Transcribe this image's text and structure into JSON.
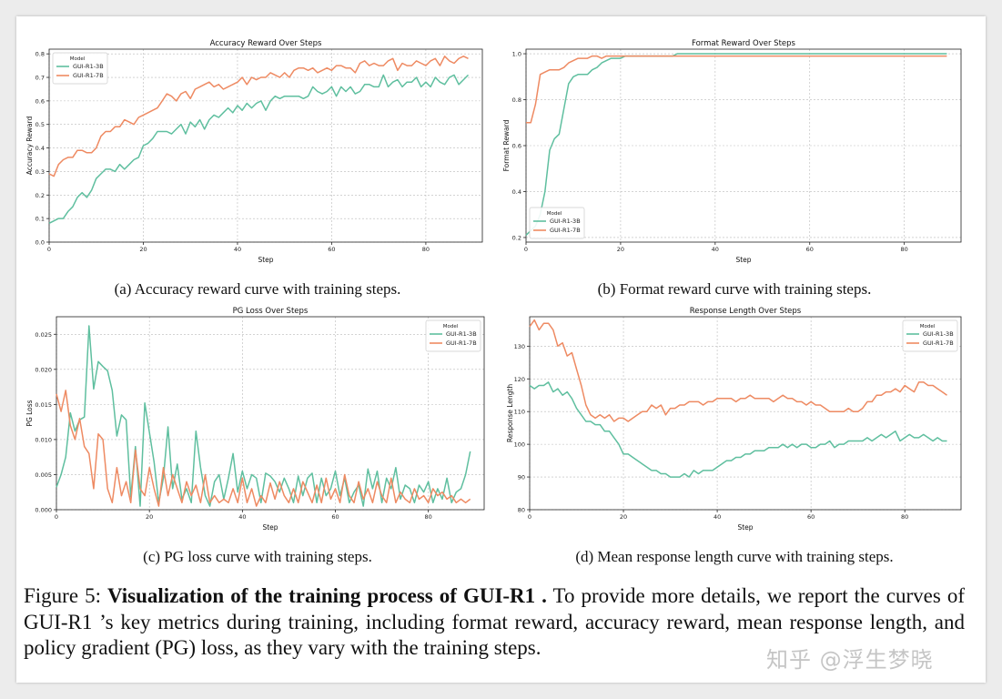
{
  "colors": {
    "3b": "#5fbf9f",
    "7b": "#ee8a62",
    "grid": "#b9b9b9"
  },
  "subcaptions": {
    "a": "(a) Accuracy reward curve with training steps.",
    "b": "(b) Format reward curve with training steps.",
    "c": "(c) PG loss curve with training steps.",
    "d": "(d) Mean response length curve with training steps."
  },
  "caption": {
    "label": "Figure 5: ",
    "bold": "Visualization of the training process of GUI-R1 .",
    "rest": " To provide more details, we report the curves of GUI-R1 ’s key metrics during training, including format reward, accuracy reward, mean response length, and policy gradient (PG) loss, as they vary with the training steps."
  },
  "watermark": "知乎 @浮生梦晓",
  "chart_data": [
    {
      "id": "acc",
      "type": "line",
      "title": "Accuracy Reward Over Steps",
      "xlabel": "Step",
      "ylabel": "Accuracy Reward",
      "xlim": [
        0,
        92
      ],
      "ylim": [
        0.0,
        0.82
      ],
      "xticks": [
        0,
        20,
        40,
        60,
        80
      ],
      "yticks": [
        0.0,
        0.1,
        0.2,
        0.3,
        0.4,
        0.5,
        0.6,
        0.7,
        0.8
      ],
      "ydec": 1,
      "legend_title": "Model",
      "legend_loc": "upper-left",
      "series": [
        {
          "name": "GUI-R1-3B",
          "color": "#5fbf9f",
          "values": [
            0.08,
            0.09,
            0.1,
            0.1,
            0.13,
            0.15,
            0.19,
            0.21,
            0.19,
            0.22,
            0.27,
            0.29,
            0.31,
            0.31,
            0.3,
            0.33,
            0.31,
            0.33,
            0.35,
            0.36,
            0.41,
            0.42,
            0.44,
            0.47,
            0.47,
            0.47,
            0.46,
            0.48,
            0.5,
            0.46,
            0.51,
            0.49,
            0.52,
            0.48,
            0.52,
            0.54,
            0.53,
            0.55,
            0.57,
            0.55,
            0.58,
            0.56,
            0.59,
            0.57,
            0.59,
            0.6,
            0.56,
            0.6,
            0.62,
            0.61,
            0.62,
            0.62,
            0.62,
            0.62,
            0.61,
            0.62,
            0.66,
            0.64,
            0.63,
            0.64,
            0.66,
            0.62,
            0.66,
            0.64,
            0.66,
            0.63,
            0.64,
            0.67,
            0.67,
            0.66,
            0.66,
            0.71,
            0.66,
            0.68,
            0.69,
            0.66,
            0.68,
            0.68,
            0.7,
            0.66,
            0.68,
            0.66,
            0.7,
            0.68,
            0.67,
            0.7,
            0.71,
            0.67,
            0.69,
            0.71
          ]
        },
        {
          "name": "GUI-R1-7B",
          "color": "#ee8a62",
          "values": [
            0.29,
            0.28,
            0.33,
            0.35,
            0.36,
            0.36,
            0.39,
            0.39,
            0.38,
            0.38,
            0.4,
            0.45,
            0.47,
            0.47,
            0.49,
            0.49,
            0.52,
            0.51,
            0.5,
            0.53,
            0.54,
            0.55,
            0.56,
            0.57,
            0.6,
            0.63,
            0.62,
            0.6,
            0.63,
            0.64,
            0.61,
            0.65,
            0.66,
            0.67,
            0.68,
            0.66,
            0.67,
            0.65,
            0.66,
            0.67,
            0.68,
            0.7,
            0.67,
            0.7,
            0.69,
            0.7,
            0.7,
            0.72,
            0.71,
            0.7,
            0.72,
            0.7,
            0.73,
            0.74,
            0.74,
            0.73,
            0.74,
            0.72,
            0.73,
            0.74,
            0.73,
            0.75,
            0.75,
            0.74,
            0.74,
            0.72,
            0.76,
            0.77,
            0.75,
            0.76,
            0.75,
            0.75,
            0.77,
            0.78,
            0.73,
            0.76,
            0.75,
            0.75,
            0.77,
            0.76,
            0.75,
            0.77,
            0.78,
            0.75,
            0.79,
            0.77,
            0.76,
            0.78,
            0.79,
            0.78
          ]
        }
      ]
    },
    {
      "id": "fmt",
      "type": "line",
      "title": "Format Reward Over Steps",
      "xlabel": "Step",
      "ylabel": "Format Reward",
      "xlim": [
        0,
        92
      ],
      "ylim": [
        0.18,
        1.02
      ],
      "xticks": [
        0,
        20,
        40,
        60,
        80
      ],
      "yticks": [
        0.2,
        0.4,
        0.6,
        0.8,
        1.0
      ],
      "ydec": 1,
      "legend_title": "Model",
      "legend_loc": "lower-left",
      "series": [
        {
          "name": "GUI-R1-3B",
          "color": "#5fbf9f",
          "values": [
            0.21,
            0.23,
            0.25,
            0.3,
            0.4,
            0.58,
            0.63,
            0.65,
            0.76,
            0.87,
            0.9,
            0.91,
            0.91,
            0.91,
            0.93,
            0.94,
            0.96,
            0.97,
            0.98,
            0.98,
            0.98,
            0.99,
            0.99,
            0.99,
            0.99,
            0.99,
            0.99,
            0.99,
            0.99,
            0.99,
            0.99,
            0.99,
            1.0,
            1.0,
            1.0,
            1.0,
            1.0,
            1.0,
            1.0,
            1.0,
            1.0,
            1.0,
            1.0,
            1.0,
            1.0,
            1.0,
            1.0,
            1.0,
            1.0,
            1.0,
            1.0,
            1.0,
            1.0,
            1.0,
            1.0,
            1.0,
            1.0,
            1.0,
            1.0,
            1.0,
            1.0,
            1.0,
            1.0,
            1.0,
            1.0,
            1.0,
            1.0,
            1.0,
            1.0,
            1.0,
            1.0,
            1.0,
            1.0,
            1.0,
            1.0,
            1.0,
            1.0,
            1.0,
            1.0,
            1.0,
            1.0,
            1.0,
            1.0,
            1.0,
            1.0,
            1.0,
            1.0,
            1.0,
            1.0,
            1.0
          ]
        },
        {
          "name": "GUI-R1-7B",
          "color": "#ee8a62",
          "values": [
            0.7,
            0.7,
            0.78,
            0.91,
            0.92,
            0.93,
            0.93,
            0.93,
            0.94,
            0.96,
            0.97,
            0.98,
            0.98,
            0.98,
            0.99,
            0.99,
            0.98,
            0.99,
            0.99,
            0.99,
            0.99,
            0.99,
            0.99,
            0.99,
            0.99,
            0.99,
            0.99,
            0.99,
            0.99,
            0.99,
            0.99,
            0.99,
            0.99,
            0.99,
            0.99,
            0.99,
            0.99,
            0.99,
            0.99,
            0.99,
            0.99,
            0.99,
            0.99,
            0.99,
            0.99,
            0.99,
            0.99,
            0.99,
            0.99,
            0.99,
            0.99,
            0.99,
            0.99,
            0.99,
            0.99,
            0.99,
            0.99,
            0.99,
            0.99,
            0.99,
            0.99,
            0.99,
            0.99,
            0.99,
            0.99,
            0.99,
            0.99,
            0.99,
            0.99,
            0.99,
            0.99,
            0.99,
            0.99,
            0.99,
            0.99,
            0.99,
            0.99,
            0.99,
            0.99,
            0.99,
            0.99,
            0.99,
            0.99,
            0.99,
            0.99,
            0.99,
            0.99,
            0.99,
            0.99,
            0.99
          ]
        }
      ]
    },
    {
      "id": "pg",
      "type": "line",
      "title": "PG Loss Over Steps",
      "xlabel": "Step",
      "ylabel": "PG Loss",
      "xlim": [
        0,
        92
      ],
      "ylim": [
        0.0,
        0.0275
      ],
      "xticks": [
        0,
        20,
        40,
        60,
        80
      ],
      "yticks": [
        0.0,
        0.005,
        0.01,
        0.015,
        0.02,
        0.025
      ],
      "ydec": 3,
      "legend_title": "Model",
      "legend_loc": "upper-right",
      "series": [
        {
          "name": "GUI-R1-3B",
          "color": "#5fbf9f",
          "values": [
            0.0032,
            0.005,
            0.0075,
            0.0138,
            0.0112,
            0.0128,
            0.0132,
            0.0262,
            0.0172,
            0.0211,
            0.0204,
            0.0198,
            0.017,
            0.0105,
            0.0135,
            0.0128,
            0.0018,
            0.009,
            0.0005,
            0.0152,
            0.011,
            0.0068,
            0.001,
            0.0045,
            0.0118,
            0.003,
            0.0065,
            0.0015,
            0.003,
            0.001,
            0.0112,
            0.006,
            0.002,
            0.0005,
            0.004,
            0.005,
            0.0015,
            0.0045,
            0.008,
            0.0025,
            0.0055,
            0.003,
            0.005,
            0.0045,
            0.001,
            0.0052,
            0.0048,
            0.004,
            0.0025,
            0.0045,
            0.003,
            0.001,
            0.0048,
            0.002,
            0.0045,
            0.0052,
            0.001,
            0.0045,
            0.002,
            0.003,
            0.0055,
            0.002,
            0.0045,
            0.001,
            0.0025,
            0.0035,
            0.0005,
            0.0058,
            0.003,
            0.0055,
            0.001,
            0.0045,
            0.003,
            0.006,
            0.0015,
            0.0035,
            0.003,
            0.001,
            0.0035,
            0.0025,
            0.004,
            0.001,
            0.003,
            0.0015,
            0.0045,
            0.001,
            0.0025,
            0.003,
            0.005,
            0.0083
          ]
        },
        {
          "name": "GUI-R1-7B",
          "color": "#ee8a62",
          "values": [
            0.0165,
            0.014,
            0.017,
            0.012,
            0.01,
            0.013,
            0.009,
            0.008,
            0.003,
            0.0108,
            0.01,
            0.003,
            0.001,
            0.006,
            0.002,
            0.004,
            0.001,
            0.0085,
            0.003,
            0.002,
            0.006,
            0.003,
            0.0005,
            0.006,
            0.002,
            0.005,
            0.003,
            0.001,
            0.004,
            0.002,
            0.0035,
            0.001,
            0.005,
            0.001,
            0.002,
            0.001,
            0.0015,
            0.001,
            0.003,
            0.001,
            0.0045,
            0.001,
            0.003,
            0.0005,
            0.002,
            0.001,
            0.0038,
            0.0015,
            0.004,
            0.002,
            0.001,
            0.003,
            0.001,
            0.004,
            0.0025,
            0.001,
            0.0035,
            0.001,
            0.0045,
            0.0015,
            0.003,
            0.001,
            0.005,
            0.002,
            0.001,
            0.004,
            0.0015,
            0.003,
            0.001,
            0.004,
            0.002,
            0.001,
            0.0045,
            0.001,
            0.0025,
            0.0015,
            0.001,
            0.003,
            0.0015,
            0.002,
            0.001,
            0.003,
            0.002,
            0.0025,
            0.0015,
            0.002,
            0.001,
            0.0015,
            0.001,
            0.0015
          ]
        }
      ]
    },
    {
      "id": "len",
      "type": "line",
      "title": "Response Length Over Steps",
      "xlabel": "Step",
      "ylabel": "Response Length",
      "xlim": [
        0,
        92
      ],
      "ylim": [
        80,
        139
      ],
      "xticks": [
        0,
        20,
        40,
        60,
        80
      ],
      "yticks": [
        80,
        90,
        100,
        110,
        120,
        130
      ],
      "ydec": 0,
      "legend_title": "Model",
      "legend_loc": "upper-right",
      "series": [
        {
          "name": "GUI-R1-3B",
          "color": "#5fbf9f",
          "values": [
            118,
            117,
            118,
            118,
            119,
            116,
            117,
            115,
            116,
            114,
            111,
            109,
            107,
            107,
            106,
            106,
            104,
            104,
            102,
            100,
            97,
            97,
            96,
            95,
            94,
            93,
            92,
            92,
            91,
            91,
            90,
            90,
            90,
            91,
            90,
            92,
            91,
            92,
            92,
            92,
            93,
            94,
            95,
            95,
            96,
            96,
            97,
            97,
            98,
            98,
            98,
            99,
            99,
            99,
            100,
            99,
            100,
            99,
            100,
            100,
            99,
            99,
            100,
            100,
            101,
            99,
            100,
            100,
            101,
            101,
            101,
            101,
            102,
            101,
            102,
            103,
            102,
            103,
            104,
            101,
            102,
            103,
            102,
            102,
            103,
            102,
            101,
            102,
            101,
            101
          ]
        },
        {
          "name": "GUI-R1-7B",
          "color": "#ee8a62",
          "values": [
            136,
            138,
            135,
            137,
            137,
            135,
            130,
            131,
            127,
            128,
            123,
            118,
            112,
            109,
            108,
            109,
            108,
            109,
            107,
            108,
            108,
            107,
            108,
            109,
            110,
            110,
            112,
            111,
            112,
            109,
            111,
            111,
            112,
            112,
            113,
            113,
            113,
            112,
            113,
            113,
            114,
            114,
            114,
            114,
            113,
            114,
            114,
            115,
            114,
            114,
            114,
            114,
            113,
            114,
            115,
            114,
            114,
            113,
            113,
            112,
            113,
            112,
            112,
            111,
            110,
            110,
            110,
            110,
            111,
            110,
            110,
            111,
            113,
            113,
            115,
            115,
            116,
            116,
            117,
            116,
            118,
            117,
            116,
            119,
            119,
            118,
            118,
            117,
            116,
            115
          ]
        }
      ]
    }
  ]
}
